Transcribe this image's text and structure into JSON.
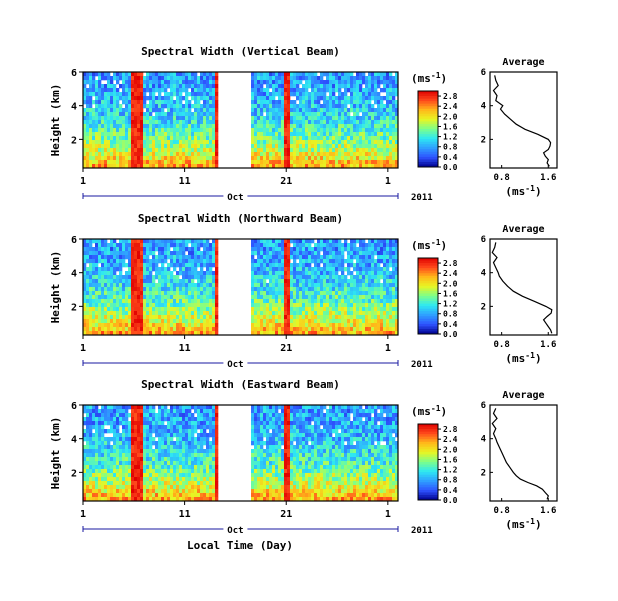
{
  "chart_data": {
    "type": "heatmap",
    "month_label": "Oct",
    "year_label": "2011",
    "xlabel": "Local Time (Day)",
    "x_tick_labels": [
      "1",
      "11",
      "21",
      "1"
    ],
    "x_ticks_days": [
      1,
      11,
      21,
      31
    ],
    "xlim_days": [
      1,
      32
    ],
    "data_gap_days": [
      14.2,
      17.4
    ],
    "ylabel": "Height (km)",
    "y_tick_labels": [
      "6",
      "4",
      "2"
    ],
    "y_ticks_km": [
      6,
      4,
      2
    ],
    "ylim_km": [
      0.3,
      6
    ],
    "colorbar": {
      "unit_label": "(ms",
      "unit_exp": "-1",
      "unit_close": ")",
      "ticks": [
        "2.8",
        "2.4",
        "2.0",
        "1.6",
        "1.2",
        "0.8",
        "0.4",
        "0.0"
      ],
      "tick_values": [
        2.8,
        2.4,
        2.0,
        1.6,
        1.2,
        0.8,
        0.4,
        0.0
      ],
      "range": [
        0.0,
        3.0
      ],
      "colors": [
        "#00008c",
        "#2e53ff",
        "#2fa0ff",
        "#2ee8f2",
        "#7dff8a",
        "#e8f523",
        "#ffb81a",
        "#ff4a1c",
        "#e00000"
      ]
    },
    "profile": {
      "title": "Average",
      "xlabel": "(ms",
      "xlabel_exp": "-1",
      "xlabel_close": ")",
      "x_tick_labels": [
        "0.8",
        "1.6"
      ],
      "x_ticks": [
        0.8,
        1.6
      ],
      "xlim": [
        0.6,
        1.75
      ],
      "y_tick_labels": [
        "6",
        "4",
        "2"
      ]
    },
    "panels": [
      {
        "title": "Spectral Width (Vertical Beam)",
        "profile_height_km": [
          0.4,
          0.6,
          0.8,
          1.0,
          1.2,
          1.4,
          1.6,
          1.8,
          2.0,
          2.3,
          2.6,
          2.9,
          3.2,
          3.5,
          3.8,
          4.0,
          4.3,
          4.6,
          4.9,
          5.2,
          5.5,
          5.8
        ],
        "profile_width_ms": [
          1.62,
          1.58,
          1.6,
          1.55,
          1.52,
          1.6,
          1.63,
          1.64,
          1.6,
          1.42,
          1.2,
          1.05,
          0.95,
          0.85,
          0.78,
          0.82,
          0.7,
          0.72,
          0.66,
          0.74,
          0.7,
          0.68
        ]
      },
      {
        "title": "Spectral Width (Northward Beam)",
        "profile_height_km": [
          0.4,
          0.6,
          0.8,
          1.0,
          1.2,
          1.4,
          1.6,
          1.8,
          2.0,
          2.3,
          2.6,
          2.9,
          3.2,
          3.5,
          3.8,
          4.0,
          4.3,
          4.6,
          4.9,
          5.2,
          5.5,
          5.8
        ],
        "profile_width_ms": [
          1.66,
          1.64,
          1.6,
          1.56,
          1.52,
          1.58,
          1.65,
          1.66,
          1.56,
          1.36,
          1.16,
          1.0,
          0.9,
          0.82,
          0.76,
          0.74,
          0.7,
          0.66,
          0.72,
          0.64,
          0.68,
          0.7
        ]
      },
      {
        "title": "Spectral Width (Eastward Beam)",
        "profile_height_km": [
          0.4,
          0.6,
          0.8,
          1.0,
          1.2,
          1.4,
          1.6,
          1.8,
          2.0,
          2.3,
          2.6,
          2.9,
          3.2,
          3.5,
          3.8,
          4.0,
          4.3,
          4.6,
          4.9,
          5.2,
          5.5,
          5.8
        ],
        "profile_width_ms": [
          1.58,
          1.6,
          1.55,
          1.5,
          1.4,
          1.25,
          1.12,
          1.05,
          1.0,
          0.94,
          0.88,
          0.84,
          0.8,
          0.76,
          0.72,
          0.7,
          0.66,
          0.7,
          0.64,
          0.72,
          0.66,
          0.7
        ]
      }
    ]
  }
}
